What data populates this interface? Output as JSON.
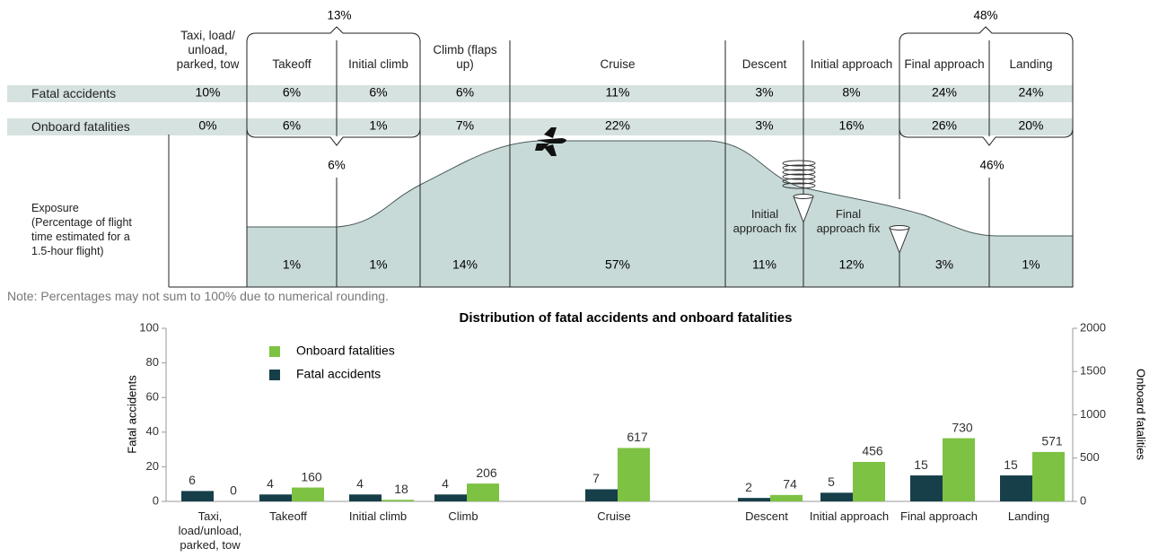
{
  "phases": [
    "Taxi, load/ unload, parked, tow",
    "Takeoff",
    "Initial climb",
    "Climb (flaps up)",
    "Cruise",
    "Descent",
    "Initial approach",
    "Final approach",
    "Landing"
  ],
  "rows": [
    {
      "label": "Fatal accidents",
      "values": [
        "10%",
        "6%",
        "6%",
        "6%",
        "11%",
        "3%",
        "8%",
        "24%",
        "24%"
      ]
    },
    {
      "label": "Onboard fatalities",
      "values": [
        "0%",
        "6%",
        "1%",
        "7%",
        "22%",
        "3%",
        "16%",
        "26%",
        "20%"
      ]
    }
  ],
  "exposure": {
    "label": "Exposure (Percentage of flight time estimated for a 1.5-hour flight)",
    "values": [
      "1%",
      "1%",
      "14%",
      "57%",
      "11%",
      "12%",
      "3%",
      "1%"
    ]
  },
  "groupings": [
    "13%",
    "6%",
    "48%",
    "46%"
  ],
  "annotations": [
    "Initial approach fix",
    "Final approach fix"
  ],
  "note": "Note: Percentages may not sum to 100% due to numerical rounding.",
  "chart_data": {
    "type": "bar",
    "title": "Distribution of fatal accidents and onboard fatalities",
    "categories": [
      "Taxi, load/unload, parked, tow",
      "Takeoff",
      "Initial climb",
      "Climb",
      "Cruise",
      "Descent",
      "Initial approach",
      "Final approach",
      "Landing"
    ],
    "series": [
      {
        "name": "Fatal accidents",
        "color": "#173f4a",
        "values": [
          6,
          4,
          4,
          4,
          7,
          2,
          5,
          15,
          15
        ]
      },
      {
        "name": "Onboard fatalities",
        "color": "#7dc243",
        "axis": "y2",
        "values": [
          0,
          160,
          18,
          206,
          617,
          74,
          456,
          730,
          571
        ]
      }
    ],
    "ylabel": "Fatal accidents",
    "y2label": "Onboard fatalities",
    "ylim": [
      0,
      100
    ],
    "yticks": [
      0,
      20,
      40,
      60,
      80,
      100
    ],
    "y2lim": [
      0,
      2000
    ],
    "y2ticks": [
      0,
      500,
      1000,
      1500,
      2000
    ]
  }
}
